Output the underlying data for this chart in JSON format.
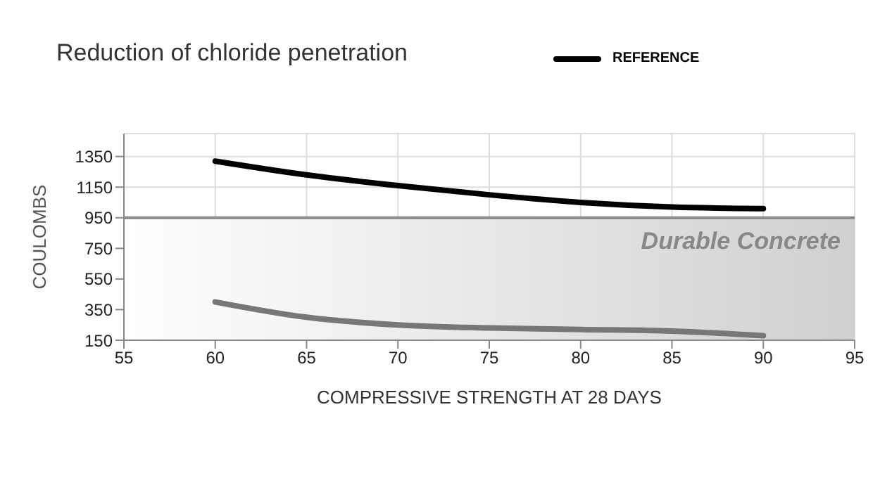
{
  "chart_data": {
    "type": "line",
    "title": "Reduction of chloride penetration",
    "xlabel": "COMPRESSIVE STRENGTH AT 28 DAYS",
    "ylabel": "COULOMBS",
    "x": [
      60,
      65,
      70,
      75,
      80,
      85,
      90
    ],
    "series": [
      {
        "name": "REFERENCE",
        "color": "#000000",
        "values": [
          1320,
          1230,
          1160,
          1100,
          1050,
          1020,
          1010
        ]
      },
      {
        "color": "#777777",
        "values": [
          400,
          300,
          250,
          230,
          220,
          210,
          180
        ]
      }
    ],
    "xlim": [
      55,
      95
    ],
    "xticks": [
      55,
      60,
      65,
      70,
      75,
      80,
      85,
      90,
      95
    ],
    "ylim": [
      150,
      1500
    ],
    "yticks": [
      150,
      350,
      550,
      750,
      950,
      1150,
      1350
    ],
    "ref_lines": [
      {
        "axis": "y",
        "value": 950,
        "color": "#888888"
      }
    ],
    "bands": [
      {
        "axis": "y",
        "from": 150,
        "to": 950,
        "label": "Durable Concrete",
        "color": "#d0d0d0"
      }
    ],
    "grid": true,
    "legend": "top right",
    "marker": "none",
    "line_style": "solid"
  }
}
